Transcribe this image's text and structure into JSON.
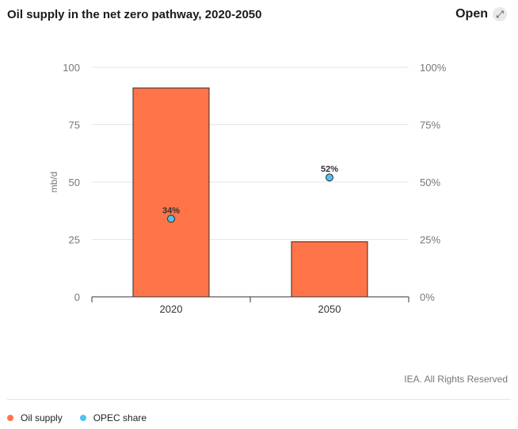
{
  "header": {
    "title": "Oil supply in the net zero pathway, 2020-2050",
    "open_label": "Open",
    "open_icon": "expand-arrows-icon"
  },
  "credit": "IEA. All Rights Reserved",
  "colors": {
    "oil_supply": "#ff7449",
    "opec_share": "#4fc3f0",
    "grid": "#e6e6e6",
    "axis": "#333333"
  },
  "chart_data": {
    "type": "bar",
    "categories": [
      "2020",
      "2050"
    ],
    "series": [
      {
        "name": "Oil supply",
        "type": "bar",
        "axis": "left",
        "values": [
          91,
          24
        ]
      },
      {
        "name": "OPEC share",
        "type": "scatter",
        "axis": "right",
        "values": [
          34,
          52
        ],
        "labels": [
          "34%",
          "52%"
        ]
      }
    ],
    "ylabel": "mb/d",
    "ylim": [
      0,
      100
    ],
    "yticks": [
      "0",
      "25",
      "50",
      "75",
      "100"
    ],
    "y2lim": [
      0,
      100
    ],
    "y2ticks": [
      "0%",
      "25%",
      "50%",
      "75%",
      "100%"
    ],
    "grid": true,
    "legend": "bottom-left"
  },
  "legend": [
    {
      "label": "Oil supply",
      "color": "#ff7449"
    },
    {
      "label": "OPEC share",
      "color": "#4fc3f0"
    }
  ]
}
